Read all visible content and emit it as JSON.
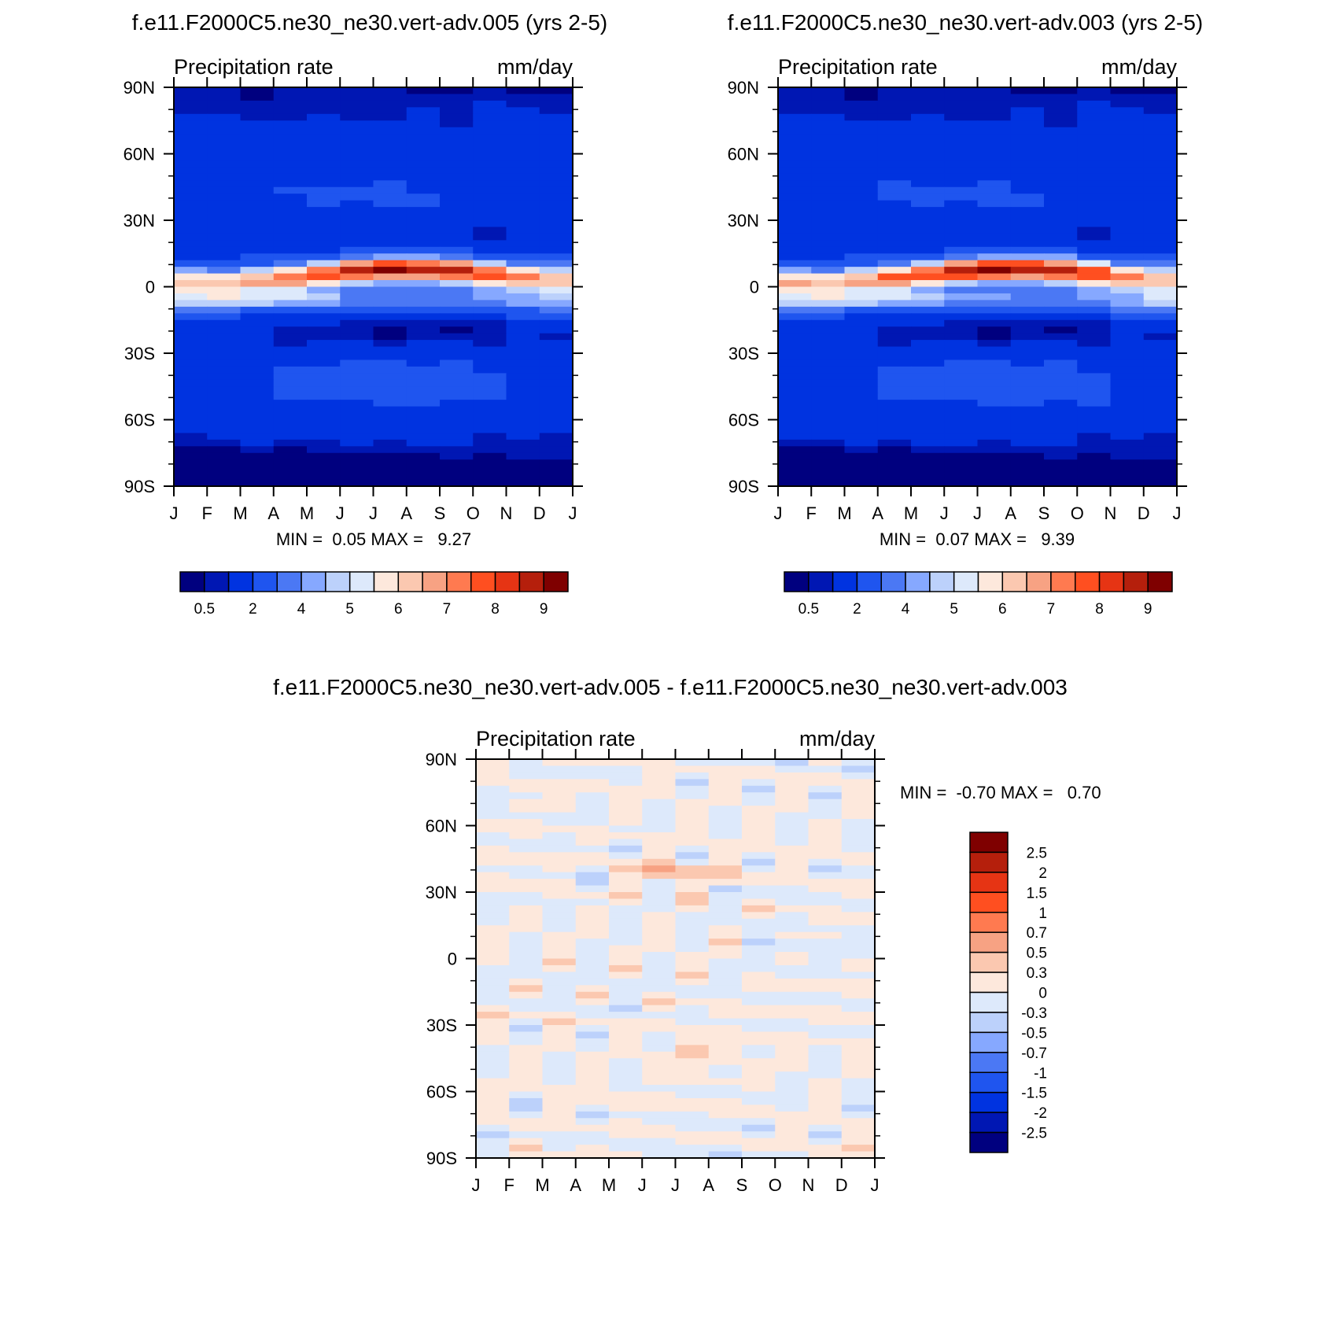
{
  "figure": {
    "panel_a_title": "f.e11.F2000C5.ne30_ne30.vert-adv.005 (yrs 2-5)",
    "panel_b_title": "f.e11.F2000C5.ne30_ne30.vert-adv.003 (yrs 2-5)",
    "panel_c_title": "f.e11.F2000C5.ne30_ne30.vert-adv.005 - f.e11.F2000C5.ne30_ne30.vert-adv.003"
  },
  "chart_data": [
    {
      "type": "heatmap",
      "variable_label": "Precipitation rate",
      "units_label": "mm/day",
      "x_ticks": [
        "J",
        "F",
        "M",
        "A",
        "M",
        "J",
        "J",
        "A",
        "S",
        "O",
        "N",
        "D",
        "J"
      ],
      "y_ticks": [
        "90N",
        "60N",
        "30N",
        "0",
        "30S",
        "60S",
        "90S"
      ],
      "ylim": [
        -90,
        90
      ],
      "min_label": "MIN =",
      "min_value": "0.05",
      "max_label": "MAX =",
      "max_value": "9.27",
      "colorbar": {
        "orientation": "horizontal",
        "labels": [
          "0.5",
          "2",
          "4",
          "5",
          "6",
          "7",
          "8",
          "9"
        ],
        "colors": [
          "#00007f",
          "#0017b3",
          "#0033e0",
          "#1f55ef",
          "#4b78f4",
          "#86a8ff",
          "#bcd1fb",
          "#dde9fb",
          "#fde8dc",
          "#fbc8b0",
          "#f7a283",
          "#ff7a50",
          "#ff4f20",
          "#e63414",
          "#b51f0c",
          "#7f0000"
        ]
      },
      "itcz": {
        "mean_lat": 5,
        "annual_amp": 3,
        "peak_month_index": 7,
        "max_value": 9.27
      }
    },
    {
      "type": "heatmap",
      "variable_label": "Precipitation rate",
      "units_label": "mm/day",
      "x_ticks": [
        "J",
        "F",
        "M",
        "A",
        "M",
        "J",
        "J",
        "A",
        "S",
        "O",
        "N",
        "D",
        "J"
      ],
      "y_ticks": [
        "90N",
        "60N",
        "30N",
        "0",
        "30S",
        "60S",
        "90S"
      ],
      "ylim": [
        -90,
        90
      ],
      "min_label": "MIN =",
      "min_value": "0.07",
      "max_label": "MAX =",
      "max_value": "9.39",
      "colorbar": {
        "orientation": "horizontal",
        "labels": [
          "0.5",
          "2",
          "4",
          "5",
          "6",
          "7",
          "8",
          "9"
        ],
        "colors": [
          "#00007f",
          "#0017b3",
          "#0033e0",
          "#1f55ef",
          "#4b78f4",
          "#86a8ff",
          "#bcd1fb",
          "#dde9fb",
          "#fde8dc",
          "#fbc8b0",
          "#f7a283",
          "#ff7a50",
          "#ff4f20",
          "#e63414",
          "#b51f0c",
          "#7f0000"
        ]
      },
      "itcz": {
        "mean_lat": 5,
        "annual_amp": 3,
        "peak_month_index": 7,
        "max_value": 9.39
      }
    },
    {
      "type": "heatmap",
      "variable_label": "Precipitation rate",
      "units_label": "mm/day",
      "x_ticks": [
        "J",
        "F",
        "M",
        "A",
        "M",
        "J",
        "J",
        "A",
        "S",
        "O",
        "N",
        "D",
        "J"
      ],
      "y_ticks": [
        "90N",
        "60N",
        "30N",
        "0",
        "30S",
        "60S",
        "90S"
      ],
      "ylim": [
        -90,
        90
      ],
      "min_label": "MIN =",
      "min_value": "-0.70",
      "max_label": "MAX =",
      "max_value": "0.70",
      "colorbar": {
        "orientation": "vertical",
        "labels": [
          "2.5",
          "2",
          "1.5",
          "1",
          "0.7",
          "0.5",
          "0.3",
          "0",
          "-0.3",
          "-0.5",
          "-0.7",
          "-1",
          "-1.5",
          "-2",
          "-2.5"
        ],
        "colors": [
          "#7f0000",
          "#b51f0c",
          "#e63414",
          "#ff4f20",
          "#ff7a50",
          "#f7a283",
          "#fbc8b0",
          "#fde8dc",
          "#dde9fb",
          "#bcd1fb",
          "#86a8ff",
          "#4b78f4",
          "#1f55ef",
          "#0033e0",
          "#0017b3",
          "#00007f"
        ]
      }
    }
  ]
}
